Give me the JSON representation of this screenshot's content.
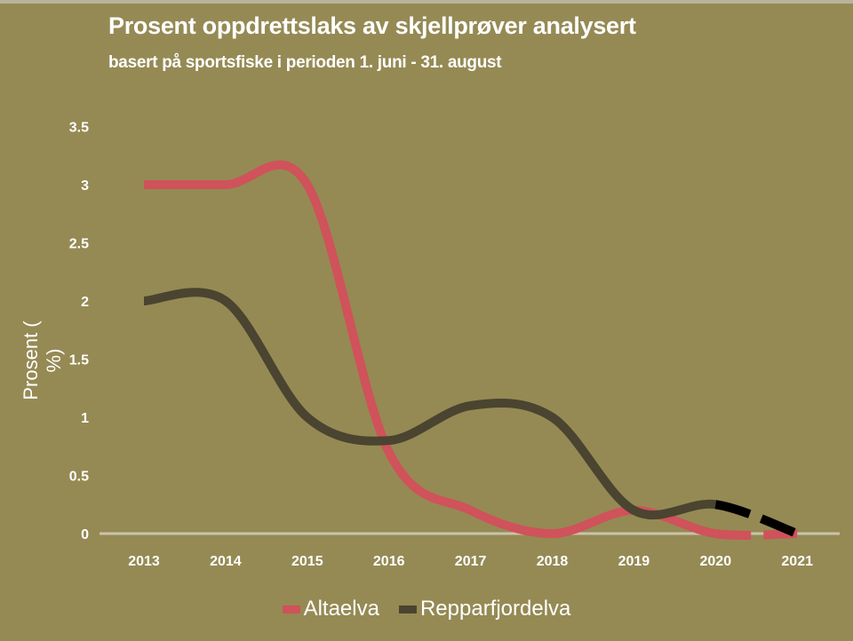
{
  "title": "Prosent oppdrettslaks av skjellprøver analysert",
  "subtitle": "basert på sportsfiske i perioden 1. juni - 31. august",
  "y_axis_label": "Prosent ( %)",
  "colors": {
    "background": "#958a54",
    "altaelva": "#d0525a",
    "repparfjordelva": "#4a4430",
    "projection": "#000000",
    "axis": "#c9c3ad"
  },
  "legend": [
    {
      "label": "Altaelva",
      "color": "#d0525a"
    },
    {
      "label": "Repparfjordelva",
      "color": "#4a4430"
    }
  ],
  "chart_data": {
    "type": "line",
    "title": "Prosent oppdrettslaks av skjellprøver analysert",
    "subtitle": "basert på sportsfiske i perioden 1. juni - 31. august",
    "xlabel": "",
    "ylabel": "Prosent ( %)",
    "ylim": [
      0,
      3.5
    ],
    "yticks": [
      "0",
      "0.5",
      "1",
      "1.5",
      "2",
      "2.5",
      "3",
      "3.5"
    ],
    "categories": [
      "2013",
      "2014",
      "2015",
      "2016",
      "2017",
      "2018",
      "2019",
      "2020",
      "2021"
    ],
    "series": [
      {
        "name": "Altaelva",
        "values": [
          3,
          3,
          3,
          0.7,
          0.2,
          0,
          0.2,
          0,
          0
        ],
        "dashed_from": "2020"
      },
      {
        "name": "Repparfjordelva",
        "values": [
          2,
          2,
          1,
          0.8,
          1.1,
          1,
          0.2,
          0.25,
          0
        ],
        "dashed_from": "2020"
      }
    ],
    "grid": false,
    "legend_position": "bottom",
    "smoothed": true
  }
}
